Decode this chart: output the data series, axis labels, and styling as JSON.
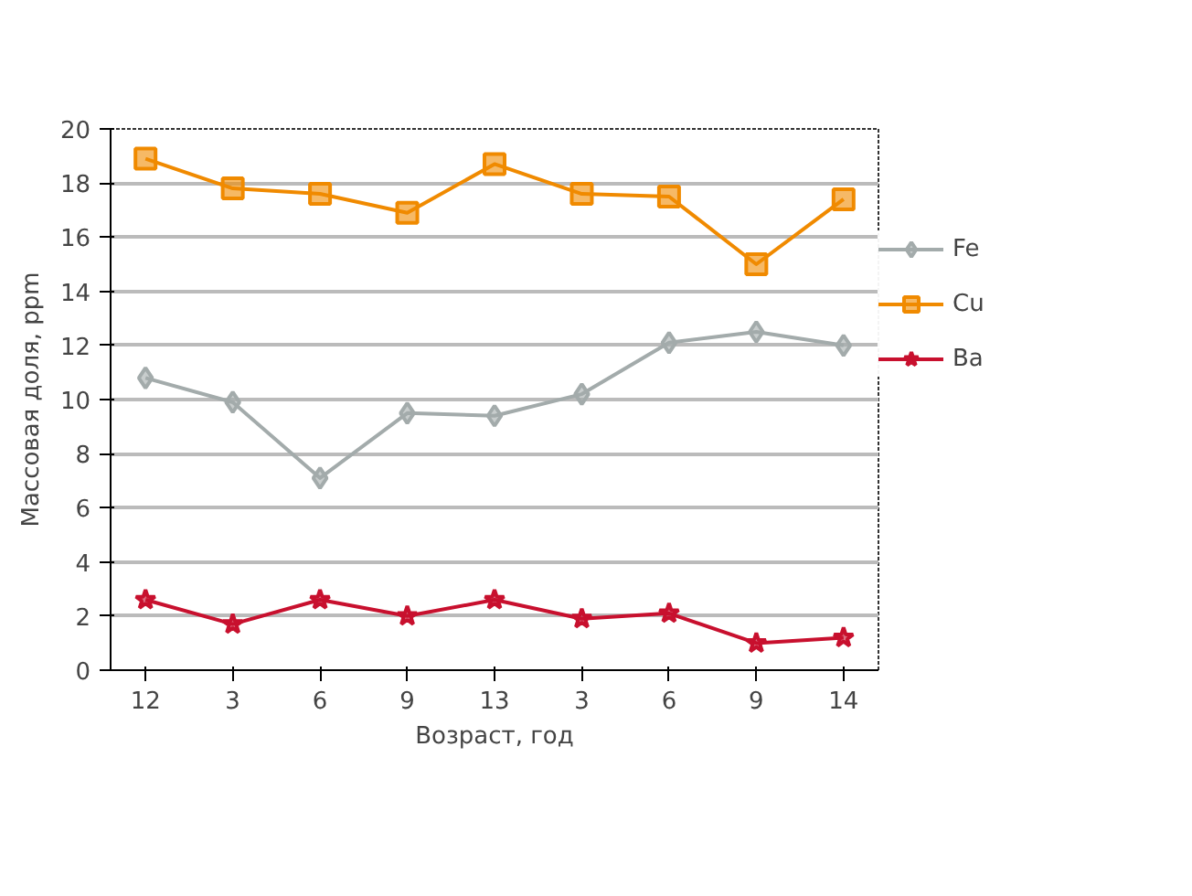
{
  "chart_data": {
    "type": "line",
    "xlabel": "Возраст, год",
    "ylabel": "Массовая доля, ppm",
    "categories": [
      "12",
      "3",
      "6",
      "9",
      "13",
      "3",
      "6",
      "9",
      "14"
    ],
    "ylim": [
      0,
      20
    ],
    "yticks": [
      0,
      2,
      4,
      6,
      8,
      10,
      12,
      14,
      16,
      18,
      20
    ],
    "grid": "y",
    "legend": "right",
    "series": [
      {
        "name": "Fe",
        "color": "#a3abab",
        "marker": "diamond",
        "values": [
          10.8,
          9.9,
          7.1,
          9.5,
          9.4,
          10.2,
          12.1,
          12.5,
          12.0
        ]
      },
      {
        "name": "Cu",
        "color": "#f08a00",
        "marker": "square",
        "values": [
          18.9,
          17.8,
          17.6,
          16.9,
          18.7,
          17.6,
          17.5,
          15.0,
          17.4
        ]
      },
      {
        "name": "Ba",
        "color": "#c8102e",
        "marker": "star",
        "values": [
          2.6,
          1.7,
          2.6,
          2.0,
          2.6,
          1.9,
          2.1,
          1.0,
          1.2
        ]
      }
    ]
  }
}
